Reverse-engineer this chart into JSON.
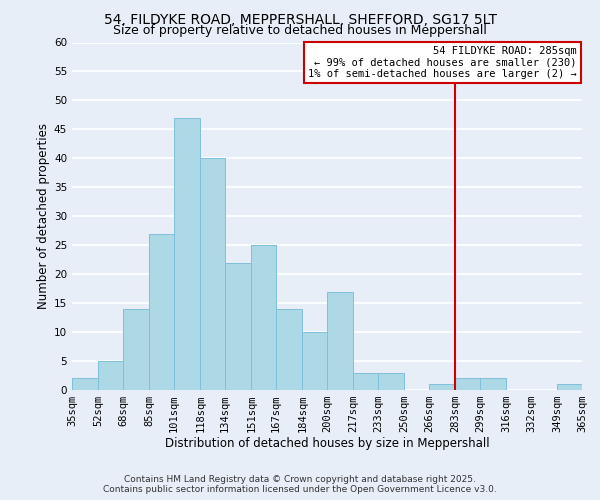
{
  "title": "54, FILDYKE ROAD, MEPPERSHALL, SHEFFORD, SG17 5LT",
  "subtitle": "Size of property relative to detached houses in Meppershall",
  "xlabel": "Distribution of detached houses by size in Meppershall",
  "ylabel": "Number of detached properties",
  "bin_edges": [
    35,
    52,
    68,
    85,
    101,
    118,
    134,
    151,
    167,
    184,
    200,
    217,
    233,
    250,
    266,
    283,
    299,
    316,
    332,
    349,
    365
  ],
  "bar_heights": [
    2,
    5,
    14,
    27,
    47,
    40,
    22,
    25,
    14,
    10,
    17,
    3,
    3,
    0,
    1,
    2,
    2,
    0,
    0,
    1
  ],
  "bar_color": "#add8e6",
  "bar_edge_color": "#7fbfda",
  "vline_x": 283,
  "vline_color": "#cc0000",
  "ylim": [
    0,
    60
  ],
  "yticks": [
    0,
    5,
    10,
    15,
    20,
    25,
    30,
    35,
    40,
    45,
    50,
    55,
    60
  ],
  "annotation_title": "54 FILDYKE ROAD: 285sqm",
  "annotation_line1": "← 99% of detached houses are smaller (230)",
  "annotation_line2": "1% of semi-detached houses are larger (2) →",
  "annotation_box_color": "#ffffff",
  "annotation_box_edge_color": "#cc0000",
  "footer1": "Contains HM Land Registry data © Crown copyright and database right 2025.",
  "footer2": "Contains public sector information licensed under the Open Government Licence v3.0.",
  "background_color": "#e8eef8",
  "grid_color": "#ffffff",
  "title_fontsize": 10,
  "subtitle_fontsize": 9,
  "axis_label_fontsize": 8.5,
  "tick_label_fontsize": 7.5,
  "footer_fontsize": 6.5,
  "annotation_fontsize": 7.5
}
